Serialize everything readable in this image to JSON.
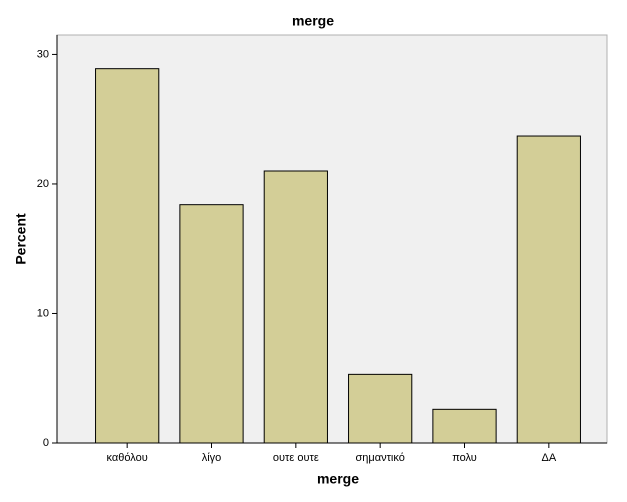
{
  "chart_data": {
    "type": "bar",
    "title": "merge",
    "x_label": "merge",
    "y_label": "Percent",
    "categories": [
      "καθόλου",
      "λίγο",
      "ουτε ουτε",
      "σημαντικό",
      "πολυ",
      "ΔΑ"
    ],
    "values": [
      28.9,
      18.4,
      21.0,
      5.3,
      2.6,
      23.7
    ],
    "color": "#d3ce97",
    "ylim": [
      0,
      31.5
    ],
    "yticks": [
      0,
      10,
      20,
      30
    ],
    "grid": false
  }
}
